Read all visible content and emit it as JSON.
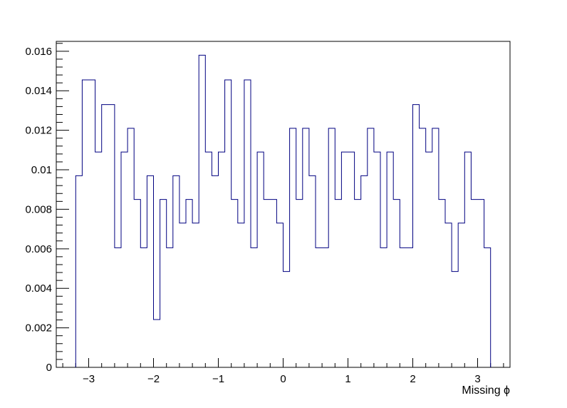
{
  "chart_data": {
    "type": "histogram",
    "title": "",
    "xlabel": "Missing ϕ",
    "ylabel": "",
    "xlim": [
      -3.5,
      3.5
    ],
    "ylim": [
      0,
      0.0165
    ],
    "x_ticks": [
      -3,
      -2,
      -1,
      0,
      1,
      2,
      3
    ],
    "x_tick_labels": [
      "−3",
      "−2",
      "−1",
      "0",
      "1",
      "2",
      "3"
    ],
    "y_ticks": [
      0,
      0.002,
      0.004,
      0.006,
      0.008,
      0.01,
      0.012,
      0.014,
      0.016
    ],
    "y_tick_labels": [
      "0",
      "0.002",
      "0.004",
      "0.006",
      "0.008",
      "0.01",
      "0.012",
      "0.014",
      "0.016"
    ],
    "bin_range": [
      -3.2,
      3.2
    ],
    "line_color": "#000080",
    "values": [
      0.0097,
      0.01455,
      0.01455,
      0.0109,
      0.0133,
      0.0133,
      0.00605,
      0.0109,
      0.0121,
      0.0085,
      0.00605,
      0.0097,
      0.00242,
      0.0085,
      0.00605,
      0.0097,
      0.0073,
      0.0085,
      0.0073,
      0.0158,
      0.0109,
      0.0097,
      0.0109,
      0.01455,
      0.0085,
      0.0073,
      0.01455,
      0.00605,
      0.0109,
      0.0085,
      0.0085,
      0.0073,
      0.00485,
      0.0121,
      0.0085,
      0.0121,
      0.0097,
      0.00605,
      0.00605,
      0.0121,
      0.0085,
      0.0109,
      0.0109,
      0.0085,
      0.0097,
      0.0121,
      0.0109,
      0.00605,
      0.0109,
      0.0085,
      0.00605,
      0.00605,
      0.0133,
      0.0121,
      0.0109,
      0.0121,
      0.0085,
      0.0073,
      0.00485,
      0.0073,
      0.0109,
      0.0085,
      0.0085,
      0.00605
    ]
  }
}
